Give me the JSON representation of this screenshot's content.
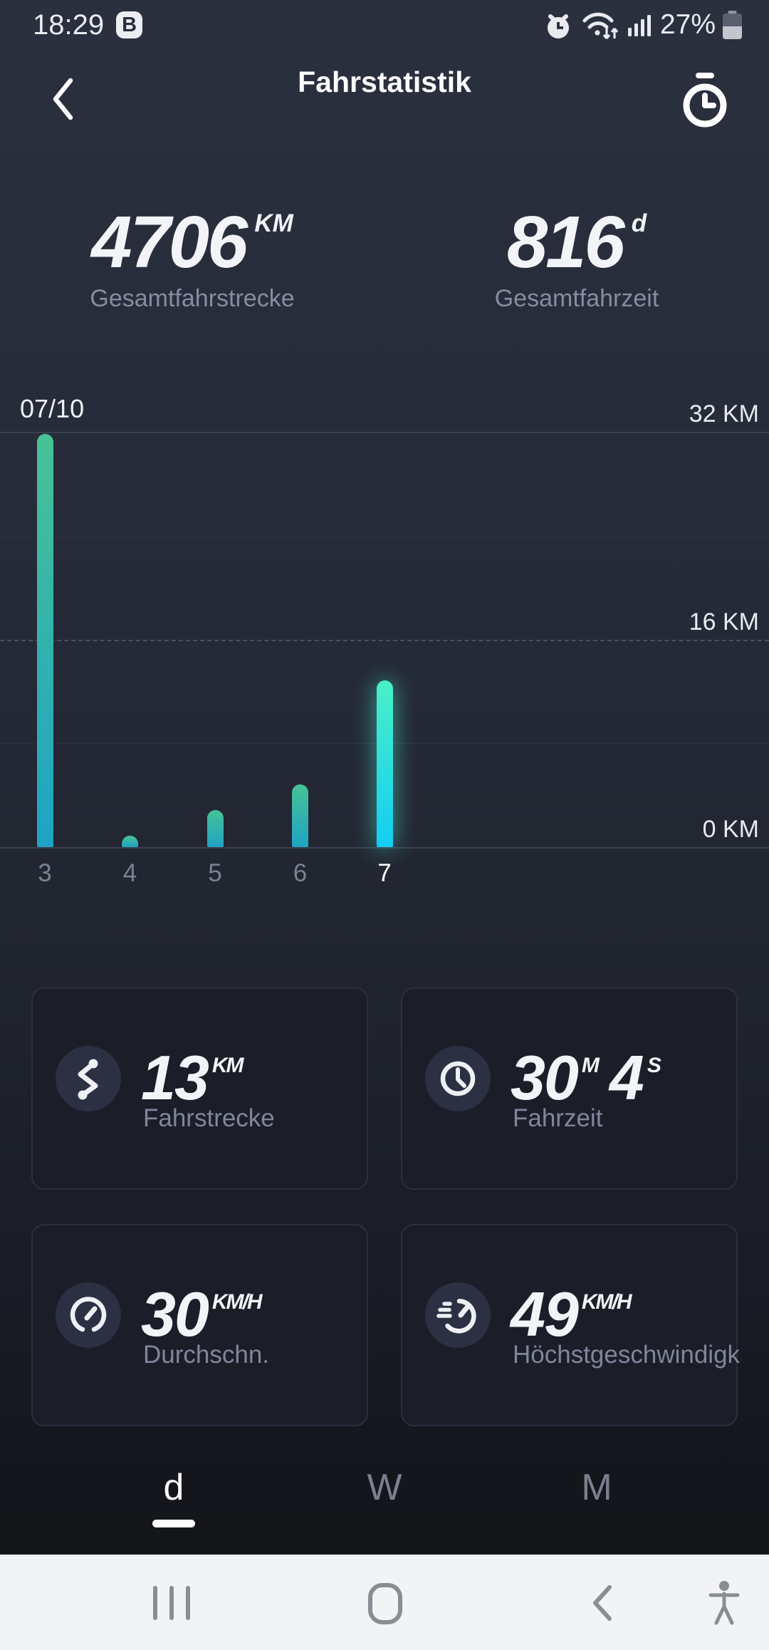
{
  "status_bar": {
    "time": "18:29",
    "badge": "B",
    "battery_percent": "27%"
  },
  "header": {
    "title": "Fahrstatistik"
  },
  "totals": [
    {
      "value": "4706",
      "unit": "KM",
      "label": "Gesamtfahrstrecke"
    },
    {
      "value": "816",
      "unit": "d",
      "label": "Gesamtfahrzeit"
    }
  ],
  "chart_data": {
    "type": "bar",
    "period_label": "07/10",
    "categories": [
      "3",
      "4",
      "5",
      "6",
      "7"
    ],
    "values": [
      32,
      1,
      3,
      5,
      13
    ],
    "highlight_index": 4,
    "ylabel": "KM",
    "ylim": [
      0,
      32
    ],
    "y_ticks": [
      {
        "value": 32,
        "label": "32 KM",
        "line": "solid"
      },
      {
        "value": 24,
        "label": "",
        "line": "faint"
      },
      {
        "value": 16,
        "label": "16 KM",
        "line": "dashed"
      },
      {
        "value": 8,
        "label": "",
        "line": "faint"
      },
      {
        "value": 0,
        "label": "0 KM",
        "line": "solid"
      }
    ],
    "bar_color_top": "#47c295",
    "bar_color_bottom": "#1fa3c4",
    "highlight_color_top": "#4af0c6",
    "highlight_color_bottom": "#13cdf4"
  },
  "cards": [
    {
      "icon": "route-icon",
      "parts": [
        {
          "v": "13",
          "u": "KM"
        }
      ],
      "label": "Fahrstrecke"
    },
    {
      "icon": "clock-icon",
      "parts": [
        {
          "v": "30",
          "u": "M"
        },
        {
          "v": "4",
          "u": "S"
        }
      ],
      "label": "Fahrzeit"
    },
    {
      "icon": "gauge-icon",
      "parts": [
        {
          "v": "30",
          "u": "KM/H"
        }
      ],
      "label": "Durchschn."
    },
    {
      "icon": "speedometer-icon",
      "parts": [
        {
          "v": "49",
          "u": "KM/H"
        }
      ],
      "label": "Höchstgeschwindigk"
    }
  ],
  "tabs": [
    {
      "label": "d",
      "selected": true
    },
    {
      "label": "W",
      "selected": false
    },
    {
      "label": "M",
      "selected": false
    }
  ]
}
